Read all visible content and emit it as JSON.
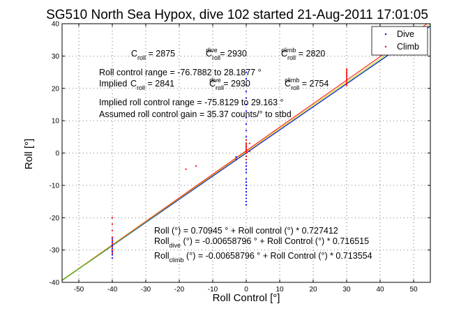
{
  "chart_data": {
    "type": "scatter",
    "title": "SG510 North Sea Hypox, dive 102 started 21-Aug-2011 17:01:05",
    "xlabel": "Roll Control [°]",
    "ylabel": "Roll [°]",
    "xlim": [
      -55,
      55
    ],
    "ylim": [
      -40,
      40
    ],
    "xticks": [
      -50,
      -40,
      -30,
      -20,
      -10,
      0,
      10,
      20,
      30,
      40,
      50
    ],
    "yticks": [
      -40,
      -30,
      -20,
      -10,
      0,
      10,
      20,
      30,
      40
    ],
    "grid": true,
    "legend": {
      "position": "top-right",
      "entries": [
        "Dive",
        "Climb"
      ]
    },
    "series": [
      {
        "name": "Dive",
        "color": "#0000ff",
        "marker": "dot",
        "points": [
          [
            -40,
            -26.5
          ],
          [
            -40,
            -27.5
          ],
          [
            -40,
            -28.5
          ],
          [
            -40,
            -29.5
          ],
          [
            -40,
            -30.5
          ],
          [
            -40,
            -31.5
          ],
          [
            -40,
            -32.5
          ],
          [
            -3,
            -2
          ],
          [
            -3,
            -1.2
          ],
          [
            0,
            -8
          ],
          [
            0,
            -9
          ],
          [
            0,
            -10
          ],
          [
            0,
            -11
          ],
          [
            0,
            -12
          ],
          [
            0,
            -13
          ],
          [
            0,
            -14
          ],
          [
            0,
            -15
          ],
          [
            0,
            -16
          ],
          [
            0,
            -3
          ],
          [
            0,
            -4
          ],
          [
            0,
            -5
          ],
          [
            0,
            -6
          ],
          [
            0,
            -1
          ],
          [
            0,
            0
          ],
          [
            0,
            1
          ],
          [
            0,
            2
          ],
          [
            0,
            3
          ],
          [
            0,
            5
          ],
          [
            0,
            7
          ],
          [
            0,
            9
          ],
          [
            0,
            11
          ],
          [
            0,
            13
          ],
          [
            0,
            15
          ],
          [
            0,
            17
          ],
          [
            0,
            19
          ],
          [
            0,
            21
          ],
          [
            0,
            23
          ],
          [
            0,
            25
          ]
        ]
      },
      {
        "name": "Climb",
        "color": "#ff0000",
        "marker": "dot",
        "points": [
          [
            -40,
            -20
          ],
          [
            -40,
            -22
          ],
          [
            -40,
            -24
          ],
          [
            -40,
            -26
          ],
          [
            -40,
            -27
          ],
          [
            -40,
            -28
          ],
          [
            -40,
            -29
          ],
          [
            -40,
            -30
          ],
          [
            -40,
            -31
          ],
          [
            -18,
            -5
          ],
          [
            -15,
            -4
          ],
          [
            0,
            -1
          ],
          [
            0,
            0
          ],
          [
            0,
            0.5
          ],
          [
            0,
            1
          ],
          [
            0,
            1.5
          ],
          [
            0,
            2
          ],
          [
            0,
            2.5
          ],
          [
            0,
            3
          ],
          [
            0,
            4
          ],
          [
            1,
            3
          ],
          [
            1,
            0.5
          ],
          [
            0,
            -2
          ],
          [
            30,
            25.5
          ],
          [
            30,
            25
          ],
          [
            30,
            24.5
          ],
          [
            30,
            24
          ],
          [
            30,
            23.5
          ],
          [
            30,
            23
          ],
          [
            30,
            22.5
          ],
          [
            30,
            22
          ],
          [
            30,
            21.5
          ],
          [
            30,
            21
          ],
          [
            30,
            26
          ]
        ]
      }
    ],
    "fit_lines": [
      {
        "color": "#ff0000",
        "slope": 0.727412,
        "intercept": 0.70945
      },
      {
        "color": "#00aa00",
        "slope": 0.716515,
        "intercept": -0.00658796
      },
      {
        "color": "#0000ff",
        "slope": 0.713554,
        "intercept": -0.00658796
      },
      {
        "color": "#cccc00",
        "slope": 0.72,
        "intercept": 0.35
      }
    ],
    "annotations": {
      "c_roll": [
        {
          "main": "C",
          "sub": "roll",
          "sup": "",
          "text": " = 2875"
        },
        {
          "main": "C",
          "sub": "roll",
          "sup": "dive",
          "text": " = 2930"
        },
        {
          "main": "C",
          "sub": "roll",
          "sup": "climb",
          "text": " = 2820"
        }
      ],
      "range": "Roll control range = -76.7882 to 28.1877 °",
      "implied_prefix": "Implied",
      "implied": [
        {
          "main": "C",
          "sub": "roll",
          "sup": "",
          "text": " = 2841"
        },
        {
          "main": "C",
          "sub": "roll",
          "sup": "dive",
          "text": " = 2930"
        },
        {
          "main": "C",
          "sub": "roll",
          "sup": "climb",
          "text": " = 2754"
        }
      ],
      "implied_range": "Implied roll control range = -75.8129 to 29.163 °",
      "gain": "Assumed roll control gain = 35.37 counts/° to stbd",
      "eq1": "Roll (°) = 0.70945 ° + Roll control (°) * 0.727412",
      "eq2": {
        "main": "Roll",
        "sub": "dive",
        "text": " (°) = -0.00658796 ° + Roll Control (°) * 0.716515"
      },
      "eq3": {
        "main": "Roll",
        "sub": "climb",
        "text": " (°) = -0.00658796 ° + Roll Control (°) * 0.713554"
      }
    }
  }
}
